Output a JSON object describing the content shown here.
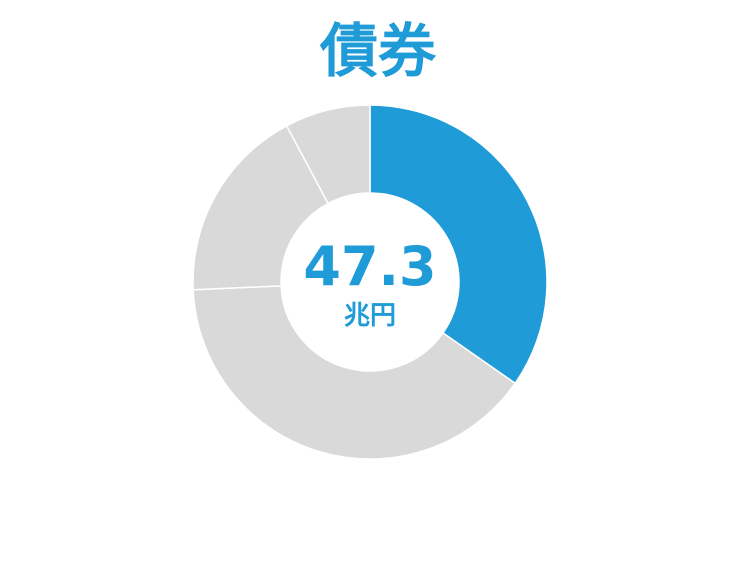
{
  "chart_data": {
    "type": "pie",
    "variant": "donut",
    "title": "債券",
    "center_value": "47.3",
    "center_unit": "兆円",
    "start": "top",
    "direction": "clockwise",
    "values": [
      34.7,
      39.6,
      17.9,
      7.8
    ],
    "colors": [
      "#1f9bd7",
      "#d9d9d9",
      "#d9d9d9",
      "#d9d9d9"
    ],
    "separator_color": "#ffffff",
    "legend": "none"
  }
}
